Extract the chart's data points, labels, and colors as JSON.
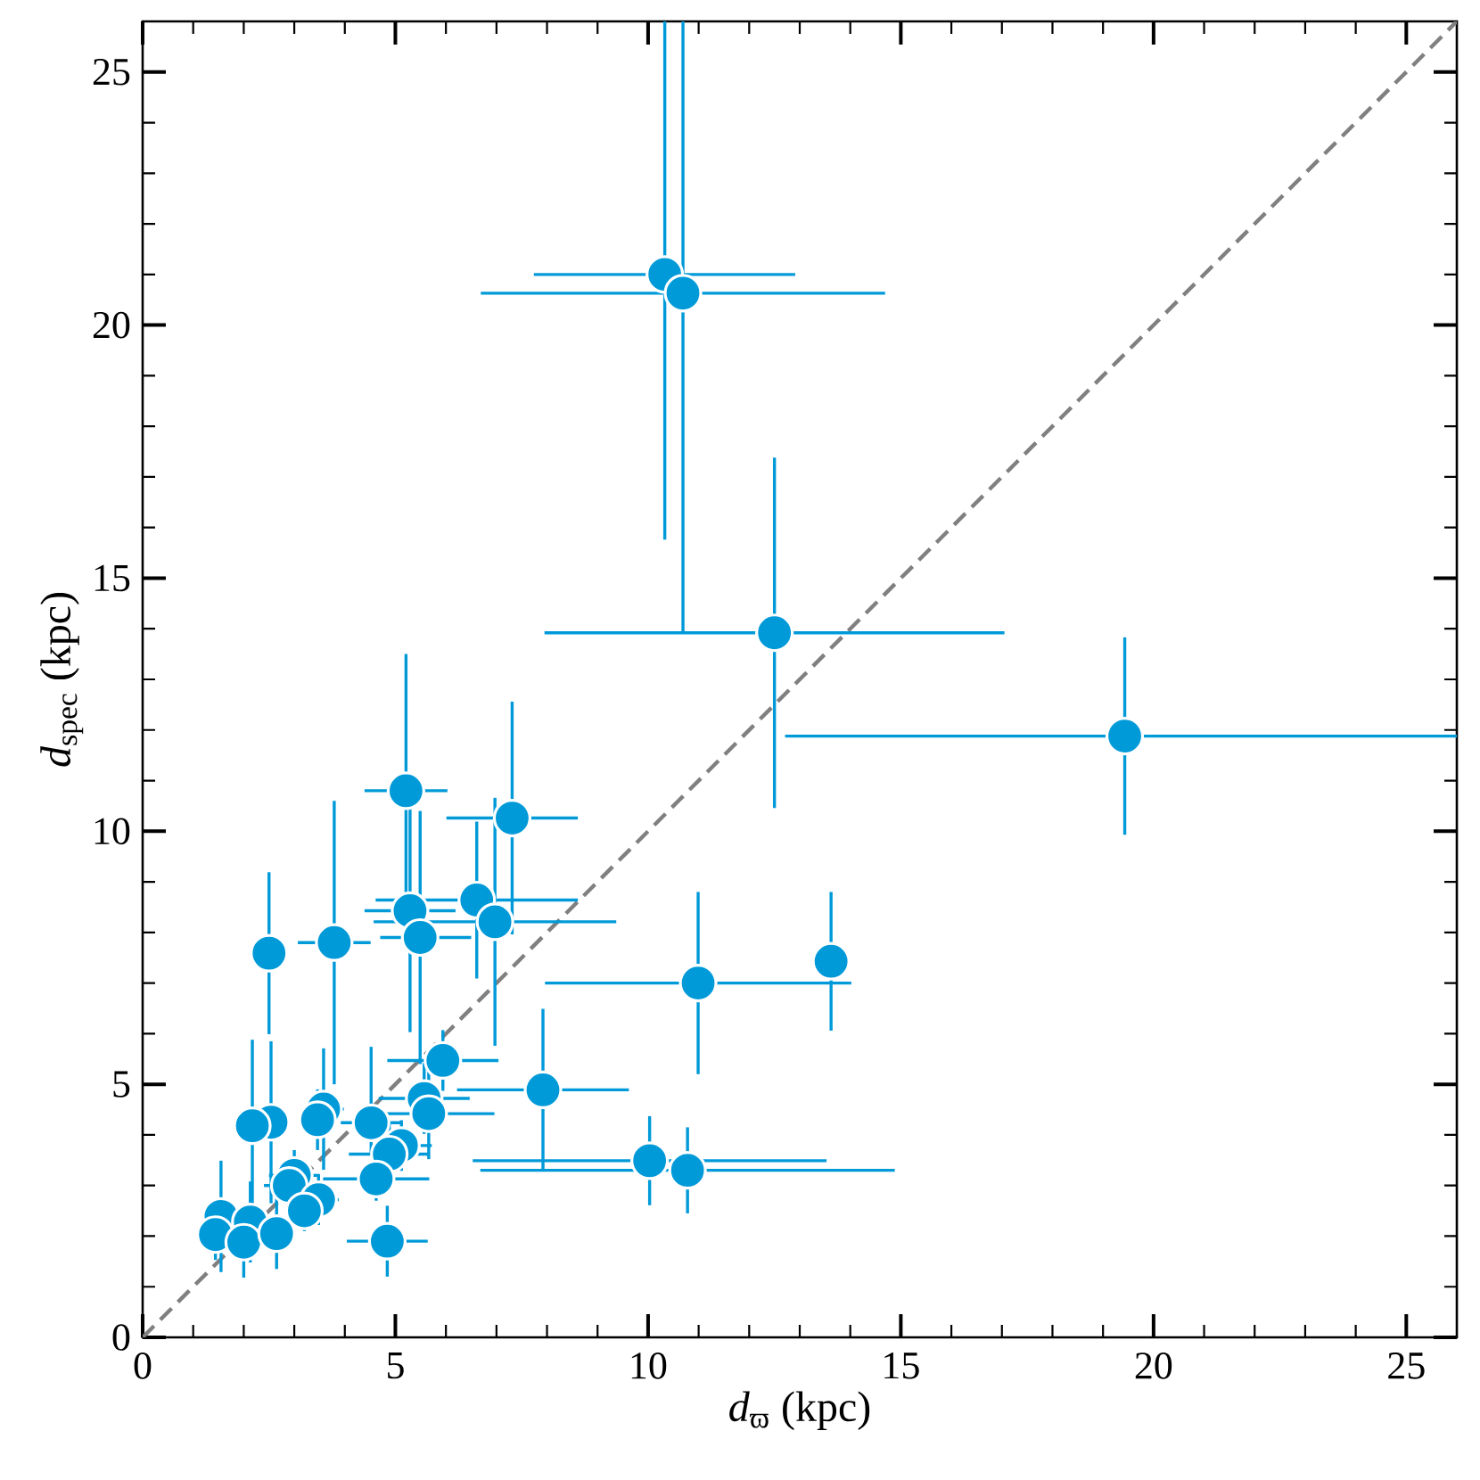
{
  "chart_data": {
    "type": "scatter",
    "xlabel": "*d*$_{ϖ}$ (kpc)",
    "ylabel": "*d*$_{spec}$ (kpc)",
    "xlim": [
      0,
      26
    ],
    "ylim": [
      0,
      26
    ],
    "xticks": [
      0,
      5,
      10,
      15,
      20,
      25
    ],
    "yticks": [
      0,
      5,
      10,
      15,
      20,
      25
    ],
    "series": [
      {
        "type": "line",
        "color": "#808080",
        "line_style": "dashed",
        "x": [
          0,
          26
        ],
        "values": [
          0,
          26
        ]
      },
      {
        "color": "#009ad9",
        "marker": "circle",
        "x": [
          10.33,
          10.69,
          12.5,
          19.43,
          10.99,
          13.62,
          7.92,
          10.03,
          10.78,
          5.21,
          7.31,
          6.61,
          6.97,
          5.29,
          5.49,
          2.5,
          3.79,
          5.94,
          5.57,
          5.66,
          4.52,
          5.12,
          4.88,
          4.62,
          4.84,
          3.58,
          3.46,
          2.54,
          2.17,
          3.0,
          2.9,
          3.48,
          3.2,
          1.55,
          1.44,
          2.13,
          2.0,
          2.65
        ],
        "values": [
          21.0,
          20.63,
          13.92,
          11.88,
          7.0,
          7.43,
          4.89,
          3.49,
          3.3,
          10.8,
          10.26,
          8.64,
          8.21,
          8.43,
          7.9,
          7.59,
          7.8,
          5.47,
          4.72,
          4.42,
          4.24,
          3.79,
          3.62,
          3.13,
          1.9,
          4.51,
          4.3,
          4.25,
          4.18,
          3.2,
          3.0,
          2.72,
          2.5,
          2.39,
          2.03,
          2.28,
          1.88,
          2.05
        ],
        "xerrors": [
          [
            7.74,
            12.91
          ],
          4.0,
          4.55,
          [
            12.71,
            26
          ],
          3.03,
          null,
          1.7,
          3.5,
          4.1,
          0.82,
          1.3,
          2.0,
          2.4,
          0.9,
          [
            4.7,
            6.5
          ],
          null,
          0.72,
          1.1,
          0.9,
          1.3,
          0.6,
          0.6,
          0.8,
          1.05,
          0.8,
          0.4,
          0.3,
          0.3,
          0.3,
          0.5,
          0.5,
          0.4,
          0.3,
          0.2,
          0.2,
          0.3,
          0.3,
          0.3
        ],
        "errors": [
          [
            15.76,
            26
          ],
          [
            13.92,
            26
          ],
          3.46,
          1.95,
          1.8,
          1.37,
          1.6,
          0.88,
          0.85,
          2.7,
          2.3,
          1.55,
          2.45,
          2.4,
          2.5,
          1.6,
          2.8,
          0.6,
          0.7,
          0.9,
          [
            3.65,
            5.74
          ],
          0.5,
          0.6,
          [
            2.7,
            3.55
          ],
          0.7,
          1.2,
          0.6,
          1.6,
          1.7,
          0.5,
          0.5,
          0.5,
          0.4,
          1.1,
          0.5,
          0.8,
          0.7,
          0.7
        ]
      }
    ]
  }
}
